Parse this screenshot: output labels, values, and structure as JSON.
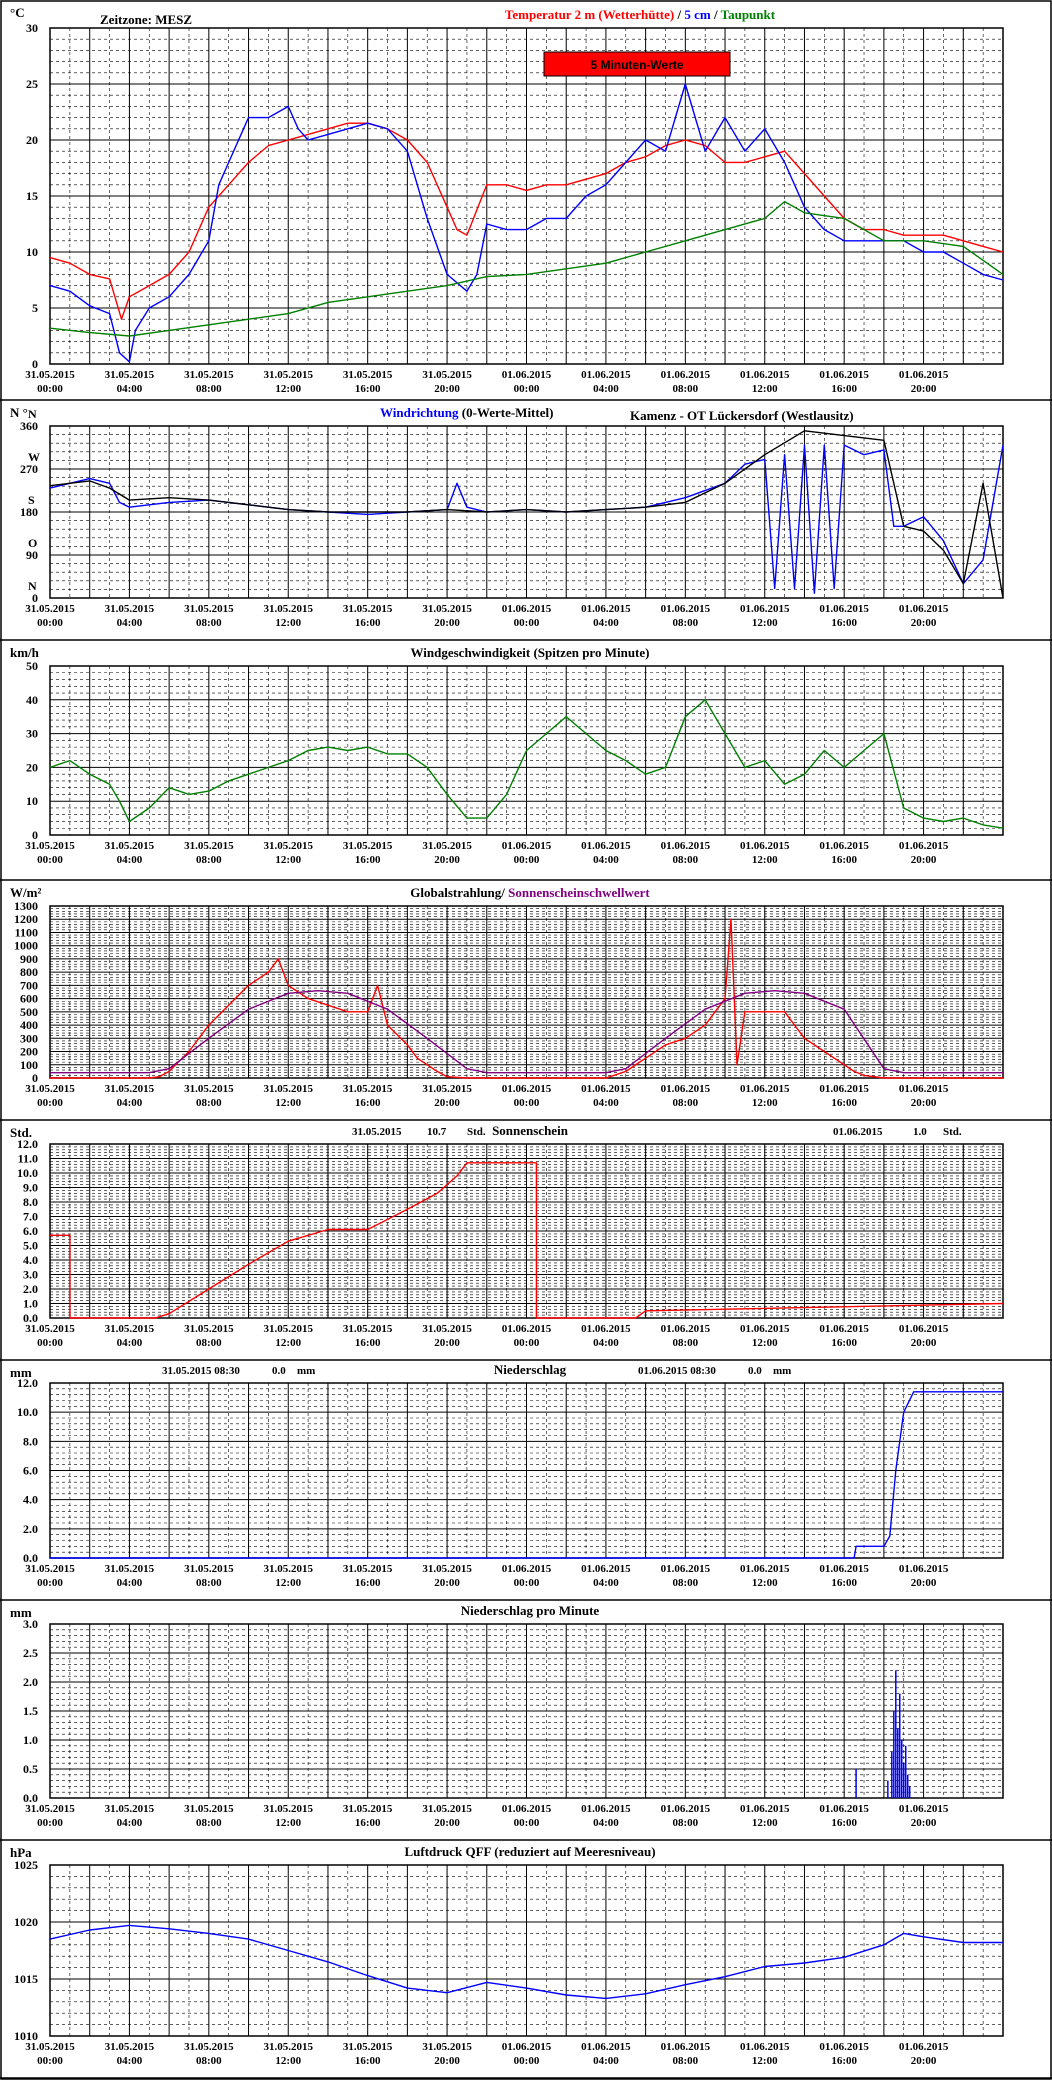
{
  "chart_data": [
    {
      "type": "line",
      "id": "temp",
      "unit": "°C",
      "zone": "Zeitzone: MESZ",
      "title": [
        {
          "text": "Temperatur 2 m (Wetterhütte)",
          "color": "#ff0000"
        },
        {
          "text": "  /  ",
          "color": "#000000"
        },
        {
          "text": "5 cm",
          "color": "#0000ff"
        },
        {
          "text": " / ",
          "color": "#000000"
        },
        {
          "text": "Taupunkt",
          "color": "#008000"
        }
      ],
      "badge": "5 Minuten-Werte",
      "ylim": [
        0,
        30
      ],
      "yticks": [
        "0",
        "5",
        "10",
        "15",
        "20",
        "25",
        "30"
      ],
      "series": [
        {
          "name": "Temperatur 2 m (Wetterhütte)",
          "color": "#ff0000",
          "x": [
            0,
            1,
            2,
            3,
            3.6,
            4,
            5,
            6,
            7,
            8,
            9,
            10,
            11,
            12,
            13,
            14,
            15,
            16,
            17,
            18,
            19,
            20,
            20.5,
            21,
            22,
            23,
            24,
            25,
            26,
            27,
            28,
            29,
            30,
            31,
            32,
            33,
            34,
            35,
            36,
            37,
            38,
            39,
            40,
            41,
            42,
            43,
            44,
            45,
            46,
            47,
            48
          ],
          "y": [
            9.5,
            9,
            8,
            7.6,
            4,
            6,
            7,
            8,
            10,
            14,
            16,
            18,
            19.5,
            20,
            20.5,
            21,
            21.5,
            21.5,
            21,
            20,
            18,
            14,
            12,
            11.5,
            16,
            16,
            15.5,
            16,
            16,
            16.5,
            17,
            18,
            18.5,
            19.5,
            20,
            19.5,
            18,
            18,
            18.5,
            19,
            17,
            15,
            13,
            12,
            12,
            11.5,
            11.5,
            11.5,
            11,
            10.5,
            10
          ]
        },
        {
          "name": "5 cm",
          "color": "#0000ff",
          "x": [
            0,
            1,
            2,
            3,
            3.5,
            4,
            4.3,
            5,
            6,
            7,
            8,
            8.5,
            9,
            10,
            11,
            12,
            12.5,
            13,
            14,
            15,
            16,
            17,
            18,
            19,
            20,
            21,
            21.5,
            22,
            23,
            24,
            25,
            26,
            27,
            28,
            29,
            30,
            31,
            32,
            33,
            34,
            35,
            36,
            37,
            38,
            39,
            40,
            41,
            42,
            43,
            44,
            45,
            46,
            47,
            48
          ],
          "y": [
            7,
            6.5,
            5.2,
            4.5,
            1,
            0.2,
            3,
            5,
            6,
            8,
            11,
            16,
            18,
            22,
            22,
            23,
            21,
            20,
            20.5,
            21,
            21.5,
            21,
            19,
            13,
            8,
            6.5,
            8,
            12.5,
            12,
            12,
            13,
            13,
            15,
            16,
            18,
            20,
            19,
            25,
            19,
            22,
            19,
            21,
            18,
            14,
            12,
            11,
            11,
            11,
            11,
            10,
            10,
            9,
            8,
            7.5
          ]
        },
        {
          "name": "Taupunkt",
          "color": "#008000",
          "x": [
            0,
            2,
            4,
            6,
            8,
            10,
            12,
            14,
            16,
            18,
            20,
            22,
            24,
            26,
            28,
            30,
            32,
            34,
            36,
            37,
            38,
            40,
            42,
            44,
            46,
            48
          ],
          "y": [
            3.2,
            2.8,
            2.5,
            3,
            3.5,
            4,
            4.5,
            5.5,
            6,
            6.5,
            7,
            7.8,
            8,
            8.5,
            9,
            10,
            11,
            12,
            13,
            14.5,
            13.5,
            13,
            11,
            11,
            10.5,
            8
          ]
        }
      ]
    },
    {
      "type": "line",
      "id": "wind-dir",
      "unit": "N °",
      "title": [
        {
          "text": "Windrichtung",
          "color": "#0000ff"
        },
        {
          "text": " (0-Werte-Mittel)",
          "color": "#000000"
        }
      ],
      "location": "Kamenz - OT Lückersdorf (Westlausitz)",
      "ylim": [
        0,
        360
      ],
      "yticks": [
        "0",
        "90",
        "180",
        "270",
        "360"
      ],
      "yletters": [
        "N",
        "O",
        "S",
        "W",
        "N"
      ],
      "series": [
        {
          "name": "Windrichtung",
          "color": "#0000ff",
          "x": [
            0,
            1,
            2,
            3,
            3.5,
            4,
            6,
            8,
            10,
            12,
            14,
            16,
            18,
            20,
            20.5,
            21,
            22,
            24,
            26,
            28,
            30,
            32,
            34,
            35,
            36,
            36.5,
            37,
            37.5,
            38,
            38.5,
            39,
            39.5,
            40,
            41,
            42,
            42.5,
            43,
            44,
            45,
            46,
            47,
            48
          ],
          "y": [
            230,
            240,
            250,
            240,
            200,
            190,
            200,
            205,
            195,
            185,
            180,
            175,
            180,
            185,
            240,
            190,
            180,
            185,
            180,
            185,
            190,
            210,
            240,
            280,
            290,
            20,
            300,
            20,
            320,
            10,
            320,
            20,
            320,
            300,
            310,
            150,
            150,
            170,
            120,
            30,
            80,
            320
          ]
        },
        {
          "name": "0-Werte-Mittel",
          "color": "#000000",
          "x": [
            0,
            2,
            3,
            4,
            6,
            8,
            10,
            12,
            14,
            16,
            18,
            20,
            22,
            24,
            26,
            28,
            30,
            32,
            34,
            36,
            38,
            40,
            42,
            43,
            44,
            45,
            46,
            47,
            48
          ],
          "y": [
            235,
            245,
            230,
            205,
            210,
            205,
            195,
            185,
            180,
            180,
            180,
            185,
            180,
            185,
            180,
            185,
            190,
            200,
            240,
            300,
            350,
            340,
            330,
            150,
            140,
            100,
            30,
            240,
            0
          ]
        }
      ]
    },
    {
      "type": "line",
      "id": "wind-speed",
      "unit": "km/h",
      "title": [
        {
          "text": "Windgeschwindigkeit (Spitzen pro Minute)",
          "color": "#000000"
        }
      ],
      "ylim": [
        0,
        50
      ],
      "yticks": [
        "0",
        "10",
        "20",
        "30",
        "40",
        "50"
      ],
      "series": [
        {
          "name": "Windgeschwindigkeit",
          "color": "#008000",
          "x": [
            0,
            1,
            2,
            3,
            3.5,
            4,
            5,
            6,
            7,
            8,
            9,
            10,
            11,
            12,
            13,
            14,
            15,
            16,
            17,
            18,
            19,
            20,
            21,
            22,
            23,
            24,
            25,
            26,
            27,
            28,
            29,
            30,
            31,
            32,
            33,
            34,
            35,
            36,
            37,
            38,
            39,
            40,
            41,
            42,
            43,
            44,
            45,
            46,
            47,
            48
          ],
          "y": [
            20,
            22,
            18,
            15,
            10,
            4,
            8,
            14,
            12,
            13,
            16,
            18,
            20,
            22,
            25,
            26,
            25,
            26,
            24,
            24,
            20,
            12,
            5,
            5,
            12,
            25,
            30,
            35,
            30,
            25,
            22,
            18,
            20,
            35,
            40,
            30,
            20,
            22,
            15,
            18,
            25,
            20,
            25,
            30,
            8,
            5,
            4,
            5,
            3,
            2
          ]
        }
      ]
    },
    {
      "type": "line",
      "id": "radiation",
      "unit": "W/m²",
      "title": [
        {
          "text": "Globalstrahlung/",
          "color": "#000000"
        },
        {
          "text": " Sonnenscheinschwellwert",
          "color": "#800080"
        }
      ],
      "ylim": [
        0,
        1300
      ],
      "yticks": [
        "0",
        "100",
        "200",
        "300",
        "400",
        "500",
        "600",
        "700",
        "800",
        "900",
        "1000",
        "1100",
        "1200",
        "1300"
      ],
      "series": [
        {
          "name": "Globalstrahlung",
          "color": "#ff0000",
          "x": [
            0,
            5,
            5.5,
            6,
            7,
            8,
            9,
            10,
            11,
            11.5,
            12,
            12.5,
            13,
            14,
            15,
            16,
            16.5,
            17,
            18,
            18.5,
            19,
            19.5,
            20,
            21,
            28,
            29,
            30,
            31,
            32,
            33,
            34,
            34.3,
            34.6,
            35,
            36,
            37,
            38,
            39,
            40,
            40.5,
            41,
            42,
            48
          ],
          "y": [
            0,
            0,
            10,
            50,
            200,
            400,
            550,
            700,
            800,
            900,
            700,
            650,
            600,
            550,
            500,
            500,
            700,
            400,
            250,
            150,
            100,
            50,
            10,
            0,
            0,
            50,
            150,
            250,
            300,
            400,
            600,
            1200,
            100,
            500,
            500,
            500,
            300,
            200,
            100,
            50,
            20,
            0,
            0
          ]
        },
        {
          "name": "Sonnenscheinschwellwert",
          "color": "#800080",
          "x": [
            0,
            5,
            6,
            8,
            10,
            12,
            13.5,
            15,
            17,
            19,
            21,
            22,
            28,
            29,
            31,
            33,
            35,
            36.5,
            38,
            40,
            42,
            43,
            48
          ],
          "y": [
            40,
            40,
            70,
            300,
            520,
            640,
            660,
            640,
            520,
            300,
            70,
            40,
            40,
            70,
            300,
            520,
            640,
            660,
            640,
            520,
            70,
            40,
            40
          ]
        }
      ]
    },
    {
      "type": "line",
      "id": "sunshine",
      "unit": "Std.",
      "title": [
        {
          "text": "Sonnenschein",
          "color": "#000000"
        }
      ],
      "sum1": {
        "date": "31.05.2015",
        "value": "10.7",
        "unit": "Std."
      },
      "sum2": {
        "date": "01.06.2015",
        "value": "1.0",
        "unit": "Std."
      },
      "ylim": [
        0,
        12
      ],
      "yticks": [
        "0.0",
        "1.0",
        "2.0",
        "3.0",
        "4.0",
        "5.0",
        "6.0",
        "7.0",
        "8.0",
        "9.0",
        "10.0",
        "11.0",
        "12.0"
      ],
      "series": [
        {
          "name": "Sonnenschein",
          "color": "#ff0000",
          "x": [
            0,
            1,
            1,
            5.3,
            6,
            8,
            10,
            12,
            14,
            15,
            16,
            18,
            19.5,
            20.5,
            21,
            24.5,
            24.5,
            29.5,
            30,
            48
          ],
          "y": [
            5.7,
            5.7,
            0,
            0,
            0.3,
            2.0,
            3.7,
            5.3,
            6.1,
            6.1,
            6.1,
            7.5,
            8.6,
            9.8,
            10.7,
            10.7,
            0,
            0,
            0.5,
            1.0
          ]
        }
      ]
    },
    {
      "type": "line",
      "id": "precip",
      "unit": "mm",
      "title": [
        {
          "text": "Niederschlag",
          "color": "#000000"
        }
      ],
      "sum1": {
        "date": "31.05.2015 08:30",
        "value": "0.0",
        "unit": "mm"
      },
      "sum2": {
        "date": "01.06.2015 08:30",
        "value": "0.0",
        "unit": "mm"
      },
      "ylim": [
        0,
        12
      ],
      "yticks": [
        "0.0",
        "2.0",
        "4.0",
        "6.0",
        "8.0",
        "10.0",
        "12.0"
      ],
      "series": [
        {
          "name": "Niederschlag",
          "color": "#0000ff",
          "x": [
            0,
            40.5,
            40.6,
            42,
            42.3,
            42.6,
            43,
            43.5,
            44,
            48
          ],
          "y": [
            0,
            0,
            0.8,
            0.8,
            1.5,
            6,
            10,
            11.4,
            11.4,
            11.4
          ]
        }
      ]
    },
    {
      "type": "bar",
      "id": "precip-min",
      "unit": "mm",
      "title": [
        {
          "text": "Niederschlag pro Minute",
          "color": "#000000"
        }
      ],
      "ylim": [
        0,
        3
      ],
      "yticks": [
        "0.0",
        "0.5",
        "1.0",
        "1.5",
        "2.0",
        "2.5",
        "3.0"
      ],
      "series": [
        {
          "name": "Niederschlag pro Minute",
          "color": "#0000ff",
          "x": [
            40.6,
            42.2,
            42.4,
            42.5,
            42.6,
            42.7,
            42.8,
            42.9,
            43.0,
            43.1,
            43.2,
            43.3
          ],
          "y": [
            0.5,
            0.3,
            0.8,
            1.5,
            2.2,
            1.2,
            1.8,
            1.0,
            0.6,
            0.9,
            0.4,
            0.2
          ]
        }
      ]
    },
    {
      "type": "line",
      "id": "pressure",
      "unit": "hPa",
      "title": [
        {
          "text": "Luftdruck QFF (reduziert auf Meeresniveau)",
          "color": "#000000"
        }
      ],
      "ylim": [
        1010,
        1025
      ],
      "yticks": [
        "1010",
        "1015",
        "1020",
        "1025"
      ],
      "series": [
        {
          "name": "Luftdruck QFF",
          "color": "#0000ff",
          "x": [
            0,
            2,
            4,
            6,
            8,
            10,
            12,
            14,
            16,
            18,
            20,
            22,
            24,
            26,
            28,
            30,
            32,
            34,
            36,
            38,
            40,
            42,
            43,
            44,
            46,
            48
          ],
          "y": [
            1018.5,
            1019.3,
            1019.7,
            1019.4,
            1019,
            1018.5,
            1017.5,
            1016.5,
            1015.3,
            1014.2,
            1013.8,
            1014.7,
            1014.2,
            1013.6,
            1013.3,
            1013.7,
            1014.5,
            1015.2,
            1016.1,
            1016.4,
            1016.9,
            1018,
            1019,
            1018.7,
            1018.2,
            1018.2
          ]
        }
      ]
    }
  ],
  "xticks": [
    {
      "date": "31.05.2015",
      "time": "00:00"
    },
    {
      "date": "31.05.2015",
      "time": "04:00"
    },
    {
      "date": "31.05.2015",
      "time": "08:00"
    },
    {
      "date": "31.05.2015",
      "time": "12:00"
    },
    {
      "date": "31.05.2015",
      "time": "16:00"
    },
    {
      "date": "31.05.2015",
      "time": "20:00"
    },
    {
      "date": "01.06.2015",
      "time": "00:00"
    },
    {
      "date": "01.06.2015",
      "time": "04:00"
    },
    {
      "date": "01.06.2015",
      "time": "08:00"
    },
    {
      "date": "01.06.2015",
      "time": "12:00"
    },
    {
      "date": "01.06.2015",
      "time": "16:00"
    },
    {
      "date": "01.06.2015",
      "time": "20:00"
    }
  ]
}
